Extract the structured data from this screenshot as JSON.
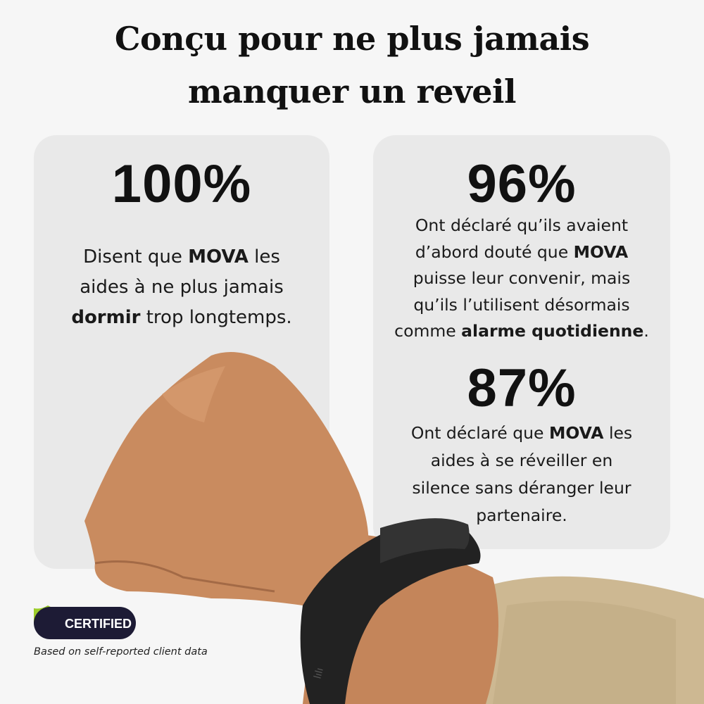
{
  "title": {
    "line1": "Conçu pour ne plus jamais",
    "line2": "manquer un reveil"
  },
  "left_card": {
    "stat": "100%",
    "lines": [
      {
        "pre": "Disent que ",
        "bold": "MOVA",
        "post": " les"
      },
      {
        "pre": "aides à ne plus jamais",
        "bold": "",
        "post": ""
      },
      {
        "pre": "",
        "bold": "dormir",
        "post": " trop longtemps."
      }
    ]
  },
  "right_card": {
    "stat1": "96%",
    "lines1": [
      {
        "pre": "Ont déclaré qu’ils avaient",
        "bold": "",
        "post": ""
      },
      {
        "pre": "d’abord douté que ",
        "bold": "MOVA",
        "post": ""
      },
      {
        "pre": "puisse leur convenir, mais",
        "bold": "",
        "post": ""
      },
      {
        "pre": "qu’ils l’utilisent désormais",
        "bold": "",
        "post": ""
      },
      {
        "pre": "comme ",
        "bold": "alarme quotidienne",
        "post": "."
      }
    ],
    "stat2": "87%",
    "lines2": [
      {
        "pre": "Ont déclaré que ",
        "bold": "MOVA",
        "post": " les"
      },
      {
        "pre": "aides à se réveiller en",
        "bold": "",
        "post": ""
      },
      {
        "pre": "silence sans déranger leur",
        "bold": "",
        "post": ""
      },
      {
        "pre": "partenaire.",
        "bold": "",
        "post": ""
      }
    ]
  },
  "badge": {
    "label": "CERTIFIED",
    "icon": "shield-check-icon",
    "note": "Based on self-reported client data"
  },
  "colors": {
    "badge_bg": "#1d1b35",
    "shield": "#9ccc2a",
    "card": "#e9e9e9",
    "skin": "#c98b5f",
    "band": "#222222",
    "sleeve": "#cdb892"
  }
}
